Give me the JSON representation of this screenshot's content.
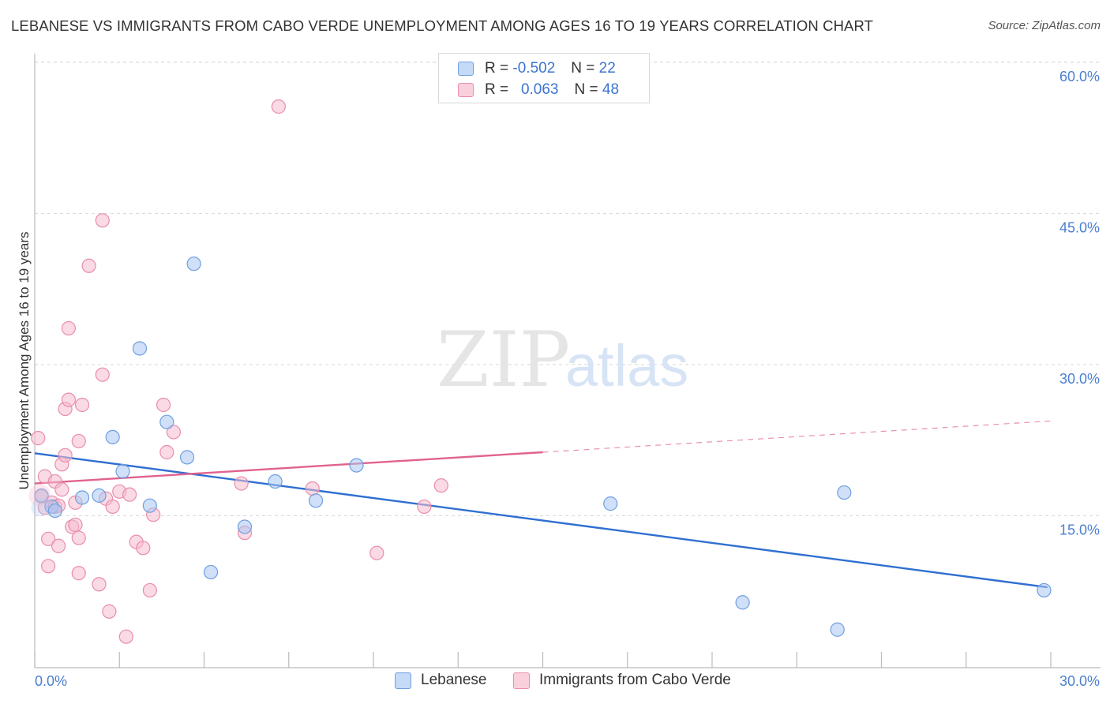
{
  "header": {
    "title": "LEBANESE VS IMMIGRANTS FROM CABO VERDE UNEMPLOYMENT AMONG AGES 16 TO 19 YEARS CORRELATION CHART",
    "source": "Source: ZipAtlas.com"
  },
  "watermark": {
    "zip": "ZIP",
    "atlas": "atlas"
  },
  "legend": {
    "rows": [
      {
        "r_label": "R =",
        "r_value": "-0.502",
        "n_label": "N =",
        "n_value": "22",
        "color": "#a9c7f2"
      },
      {
        "r_label": "R =",
        "r_value": "0.063",
        "n_label": "N =",
        "n_value": "48",
        "color": "#f5b8cb"
      }
    ]
  },
  "colors": {
    "lebanese_fill": "#a9c7f2",
    "lebanese_stroke": "#6e9fe0",
    "lebanese_line": "#2f6fd1",
    "cabo_fill": "#f5bccd",
    "cabo_stroke": "#e98dab",
    "cabo_line": "#e0628f",
    "grid": "#d8d8d8",
    "tick_text": "#4a7fd0"
  },
  "chart_data": {
    "type": "scatter",
    "title": "LEBANESE VS IMMIGRANTS FROM CABO VERDE UNEMPLOYMENT AMONG AGES 16 TO 19 YEARS CORRELATION CHART",
    "xlabel": "",
    "ylabel": "Unemployment Among Ages 16 to 19 years",
    "xlim": [
      0,
      30
    ],
    "ylim": [
      0,
      60
    ],
    "x_ticks": [
      "0.0%",
      "30.0%"
    ],
    "y_ticks": [
      {
        "value": 15,
        "label": "15.0%"
      },
      {
        "value": 30,
        "label": "30.0%"
      },
      {
        "value": 45,
        "label": "45.0%"
      },
      {
        "value": 60,
        "label": "60.0%"
      }
    ],
    "grid": true,
    "legend_position": "top-center",
    "series": [
      {
        "name": "Lebanese",
        "points": [
          [
            0.2,
            17.0
          ],
          [
            0.5,
            15.9
          ],
          [
            0.6,
            15.5
          ],
          [
            1.4,
            16.8
          ],
          [
            1.9,
            17.0
          ],
          [
            2.3,
            22.8
          ],
          [
            2.6,
            19.4
          ],
          [
            3.1,
            31.6
          ],
          [
            3.4,
            16.0
          ],
          [
            3.9,
            24.3
          ],
          [
            4.5,
            20.8
          ],
          [
            4.7,
            40.0
          ],
          [
            5.2,
            9.4
          ],
          [
            6.2,
            13.9
          ],
          [
            7.1,
            18.4
          ],
          [
            8.3,
            16.5
          ],
          [
            9.5,
            20.0
          ],
          [
            17.0,
            16.2
          ],
          [
            20.9,
            6.4
          ],
          [
            23.7,
            3.7
          ],
          [
            23.9,
            17.3
          ],
          [
            29.8,
            7.6
          ]
        ],
        "trend": {
          "x0": 0,
          "y0": 21.2,
          "x1": 29.9,
          "y1": 7.9
        }
      },
      {
        "name": "Immigrants from Cabo Verde",
        "points": [
          [
            0.1,
            22.7
          ],
          [
            0.2,
            16.9
          ],
          [
            0.3,
            15.8
          ],
          [
            0.3,
            18.9
          ],
          [
            0.4,
            10.0
          ],
          [
            0.4,
            12.7
          ],
          [
            0.5,
            16.3
          ],
          [
            0.6,
            15.9
          ],
          [
            0.6,
            18.4
          ],
          [
            0.7,
            12.0
          ],
          [
            0.7,
            16.0
          ],
          [
            0.8,
            17.6
          ],
          [
            0.8,
            20.1
          ],
          [
            0.9,
            21.0
          ],
          [
            0.9,
            25.6
          ],
          [
            1.0,
            26.5
          ],
          [
            1.0,
            33.6
          ],
          [
            1.1,
            13.9
          ],
          [
            1.2,
            16.3
          ],
          [
            1.2,
            14.1
          ],
          [
            1.3,
            12.8
          ],
          [
            1.3,
            22.4
          ],
          [
            1.3,
            9.3
          ],
          [
            1.4,
            26.0
          ],
          [
            1.6,
            39.8
          ],
          [
            1.9,
            8.2
          ],
          [
            2.0,
            29.0
          ],
          [
            2.0,
            44.3
          ],
          [
            2.1,
            16.7
          ],
          [
            2.2,
            5.5
          ],
          [
            2.3,
            15.9
          ],
          [
            2.5,
            17.4
          ],
          [
            2.7,
            3.0
          ],
          [
            2.8,
            17.1
          ],
          [
            3.0,
            12.4
          ],
          [
            3.2,
            11.8
          ],
          [
            3.4,
            7.6
          ],
          [
            3.5,
            15.1
          ],
          [
            3.8,
            26.0
          ],
          [
            3.9,
            21.3
          ],
          [
            4.1,
            23.3
          ],
          [
            6.1,
            18.2
          ],
          [
            6.2,
            13.3
          ],
          [
            7.2,
            55.6
          ],
          [
            8.2,
            17.7
          ],
          [
            10.1,
            11.3
          ],
          [
            11.5,
            15.9
          ],
          [
            12.0,
            18.0
          ]
        ],
        "trend": {
          "x0": 0,
          "y0": 18.2,
          "x1": 15.0,
          "y1": 21.3
        },
        "trend_extension": {
          "x0": 15.0,
          "y0": 21.3,
          "x1": 30.0,
          "y1": 24.4
        }
      }
    ]
  },
  "bottom_legend": {
    "items": [
      {
        "label": "Lebanese"
      },
      {
        "label": "Immigrants from Cabo Verde"
      }
    ]
  }
}
